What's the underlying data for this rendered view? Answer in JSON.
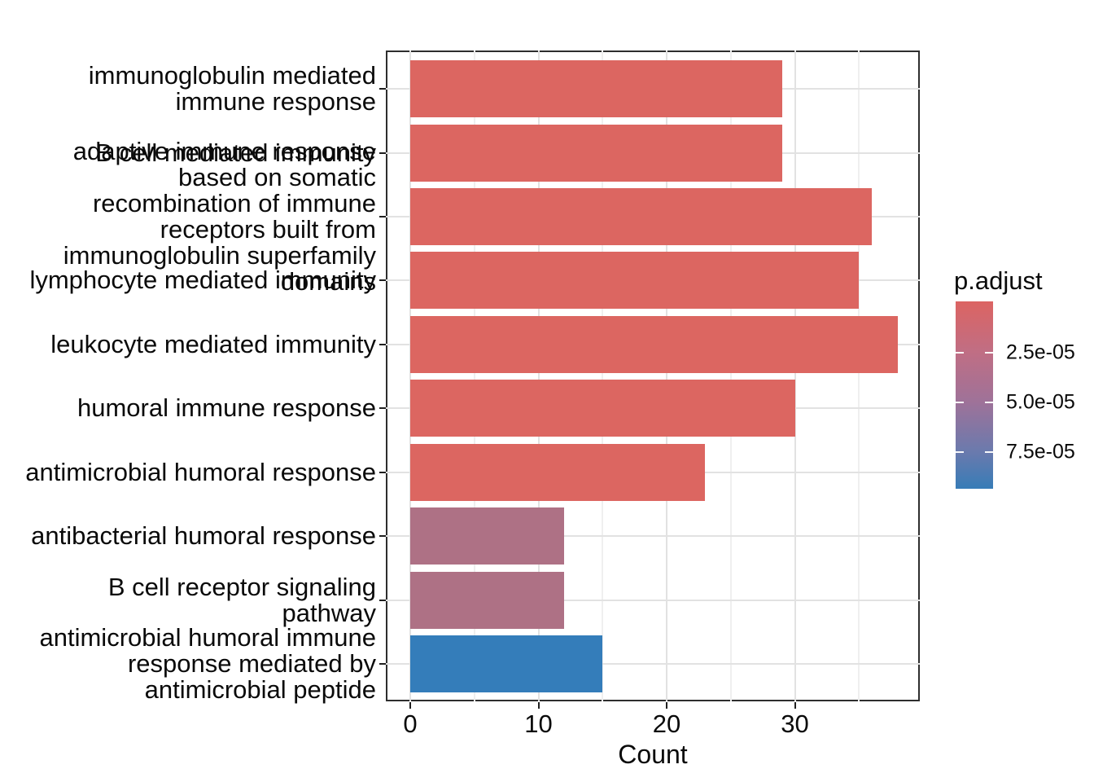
{
  "chart_data": {
    "type": "bar",
    "orientation": "horizontal",
    "title": "",
    "xlabel": "Count",
    "ylabel": "",
    "x_major_ticks": [
      0,
      10,
      20,
      30
    ],
    "x_minor_ticks": [
      5,
      15,
      25,
      35
    ],
    "x_axis_range": [
      -1.9,
      39.9
    ],
    "grid": "on",
    "categories": [
      {
        "label": "immunoglobulin mediated immune response",
        "label_lines": [
          "immunoglobulin mediated",
          "immune response"
        ],
        "count": 29,
        "color": "#dc6661"
      },
      {
        "label": "B cell mediated immunity",
        "label_lines": [
          "B cell mediated immunity"
        ],
        "count": 29,
        "color": "#dc6661"
      },
      {
        "label": "adaptive immune response based on somatic recombination of immune receptors built from immunoglobulin superfamily domains",
        "label_lines": [
          "adaptive immune response",
          "based on somatic",
          "recombination of immune",
          "receptors built from",
          "immunoglobulin superfamily",
          "domains"
        ],
        "count": 36,
        "color": "#dc6661"
      },
      {
        "label": "lymphocyte mediated immunity",
        "label_lines": [
          "lymphocyte mediated immunity"
        ],
        "count": 35,
        "color": "#dc6661"
      },
      {
        "label": "leukocyte mediated immunity",
        "label_lines": [
          "leukocyte mediated immunity"
        ],
        "count": 38,
        "color": "#dc6661"
      },
      {
        "label": "humoral immune response",
        "label_lines": [
          "humoral immune response"
        ],
        "count": 30,
        "color": "#dc6661"
      },
      {
        "label": "antimicrobial humoral response",
        "label_lines": [
          "antimicrobial humoral response"
        ],
        "count": 23,
        "color": "#dc6661"
      },
      {
        "label": "antibacterial humoral response",
        "label_lines": [
          "antibacterial humoral response"
        ],
        "count": 12,
        "color": "#ae7185"
      },
      {
        "label": "B cell receptor signaling pathway",
        "label_lines": [
          "B cell receptor signaling",
          "pathway"
        ],
        "count": 12,
        "color": "#ae7185"
      },
      {
        "label": "antimicrobial humoral immune response mediated by antimicrobial peptide",
        "label_lines": [
          "antimicrobial humoral immune",
          "response mediated by",
          "antimicrobial peptide"
        ],
        "count": 15,
        "color": "#347dba"
      }
    ],
    "legend": {
      "title": "p.adjust",
      "position": "right",
      "tick_labels": [
        "2.5e-05",
        "5.0e-05",
        "7.5e-05"
      ],
      "gradient_top_color": "#dc6462",
      "gradient_mid_color": "#9e7299",
      "gradient_bottom_color": "#377cb7",
      "value_range_top_to_bottom": [
        0.0,
        9.3e-05
      ]
    }
  }
}
